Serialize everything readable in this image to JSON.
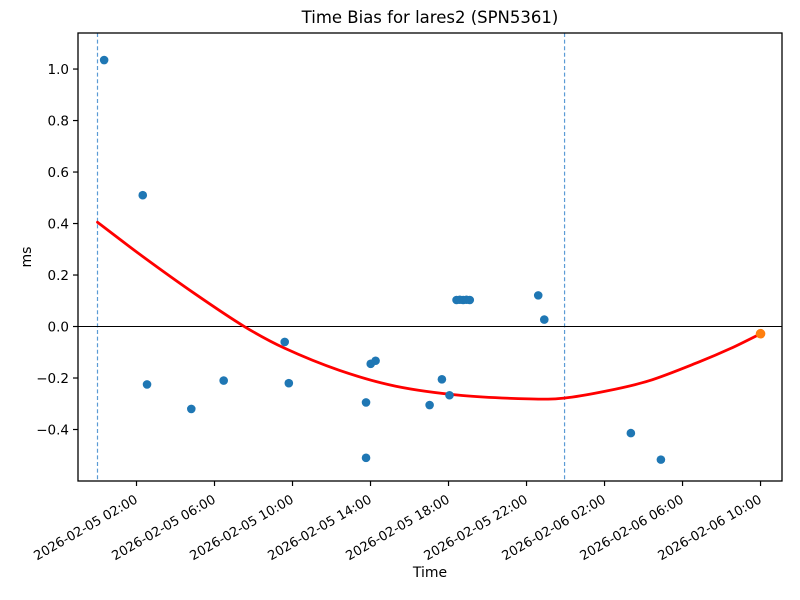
{
  "chart_data": {
    "type": "scatter",
    "title": "Time Bias for lares2 (SPN5361)",
    "xlabel": "Time",
    "ylabel": "ms",
    "x_unit": "hours since 2026-02-05 00:00",
    "xlim": [
      -1.0,
      35.1
    ],
    "ylim": [
      -0.6,
      1.14
    ],
    "grid": false,
    "legend": "none",
    "x_ticks": [
      {
        "t": 2,
        "label": "2026-02-05 02:00"
      },
      {
        "t": 6,
        "label": "2026-02-05 06:00"
      },
      {
        "t": 10,
        "label": "2026-02-05 10:00"
      },
      {
        "t": 14,
        "label": "2026-02-05 14:00"
      },
      {
        "t": 18,
        "label": "2026-02-05 18:00"
      },
      {
        "t": 22,
        "label": "2026-02-05 22:00"
      },
      {
        "t": 26,
        "label": "2026-02-06 02:00"
      },
      {
        "t": 30,
        "label": "2026-02-06 06:00"
      },
      {
        "t": 34,
        "label": "2026-02-06 10:00"
      }
    ],
    "y_ticks": [
      {
        "v": 1.0,
        "label": "1.0"
      },
      {
        "v": 0.8,
        "label": "0.8"
      },
      {
        "v": 0.6,
        "label": "0.6"
      },
      {
        "v": 0.4,
        "label": "0.4"
      },
      {
        "v": 0.2,
        "label": "0.2"
      },
      {
        "v": 0.0,
        "label": "0.0"
      },
      {
        "v": -0.2,
        "label": "−0.2"
      },
      {
        "v": -0.4,
        "label": "−0.4"
      }
    ],
    "series": [
      {
        "name": "bias-points",
        "type": "scatter",
        "color": "#1f77b4",
        "points": [
          [
            0.34,
            1.035
          ],
          [
            2.32,
            0.51
          ],
          [
            2.54,
            -0.225
          ],
          [
            4.81,
            -0.32
          ],
          [
            6.47,
            -0.21
          ],
          [
            9.6,
            -0.06
          ],
          [
            9.81,
            -0.22
          ],
          [
            13.77,
            -0.295
          ],
          [
            13.77,
            -0.51
          ],
          [
            14.01,
            -0.145
          ],
          [
            14.26,
            -0.133
          ],
          [
            17.03,
            -0.305
          ],
          [
            17.66,
            -0.205
          ],
          [
            18.05,
            -0.267
          ],
          [
            18.41,
            0.103
          ],
          [
            18.58,
            0.104
          ],
          [
            18.75,
            0.103
          ],
          [
            18.92,
            0.104
          ],
          [
            19.09,
            0.103
          ],
          [
            22.6,
            0.121
          ],
          [
            22.91,
            0.027
          ],
          [
            27.35,
            -0.414
          ],
          [
            28.89,
            -0.517
          ]
        ]
      },
      {
        "name": "latest-point",
        "type": "scatter",
        "color": "#ff7f0e",
        "points": [
          [
            34.0,
            -0.028
          ]
        ]
      },
      {
        "name": "fit-curve",
        "type": "line",
        "color": "#ff0000",
        "points": [
          [
            0.0,
            0.405
          ],
          [
            2.32,
            0.272
          ],
          [
            4.98,
            0.128
          ],
          [
            7.53,
            0.0
          ],
          [
            9.59,
            -0.084
          ],
          [
            12.4,
            -0.17
          ],
          [
            15.3,
            -0.232
          ],
          [
            18.7,
            -0.268
          ],
          [
            22.13,
            -0.281
          ],
          [
            23.92,
            -0.278
          ],
          [
            26.0,
            -0.252
          ],
          [
            28.27,
            -0.211
          ],
          [
            30.83,
            -0.138
          ],
          [
            32.47,
            -0.085
          ],
          [
            34.0,
            -0.028
          ]
        ]
      }
    ],
    "vlines": {
      "t": [
        0.0,
        23.95
      ],
      "color": "#5b9bd5",
      "style": "dashed"
    },
    "hline": {
      "y": 0.0,
      "color": "#000000"
    },
    "axis_color": "#000000"
  }
}
